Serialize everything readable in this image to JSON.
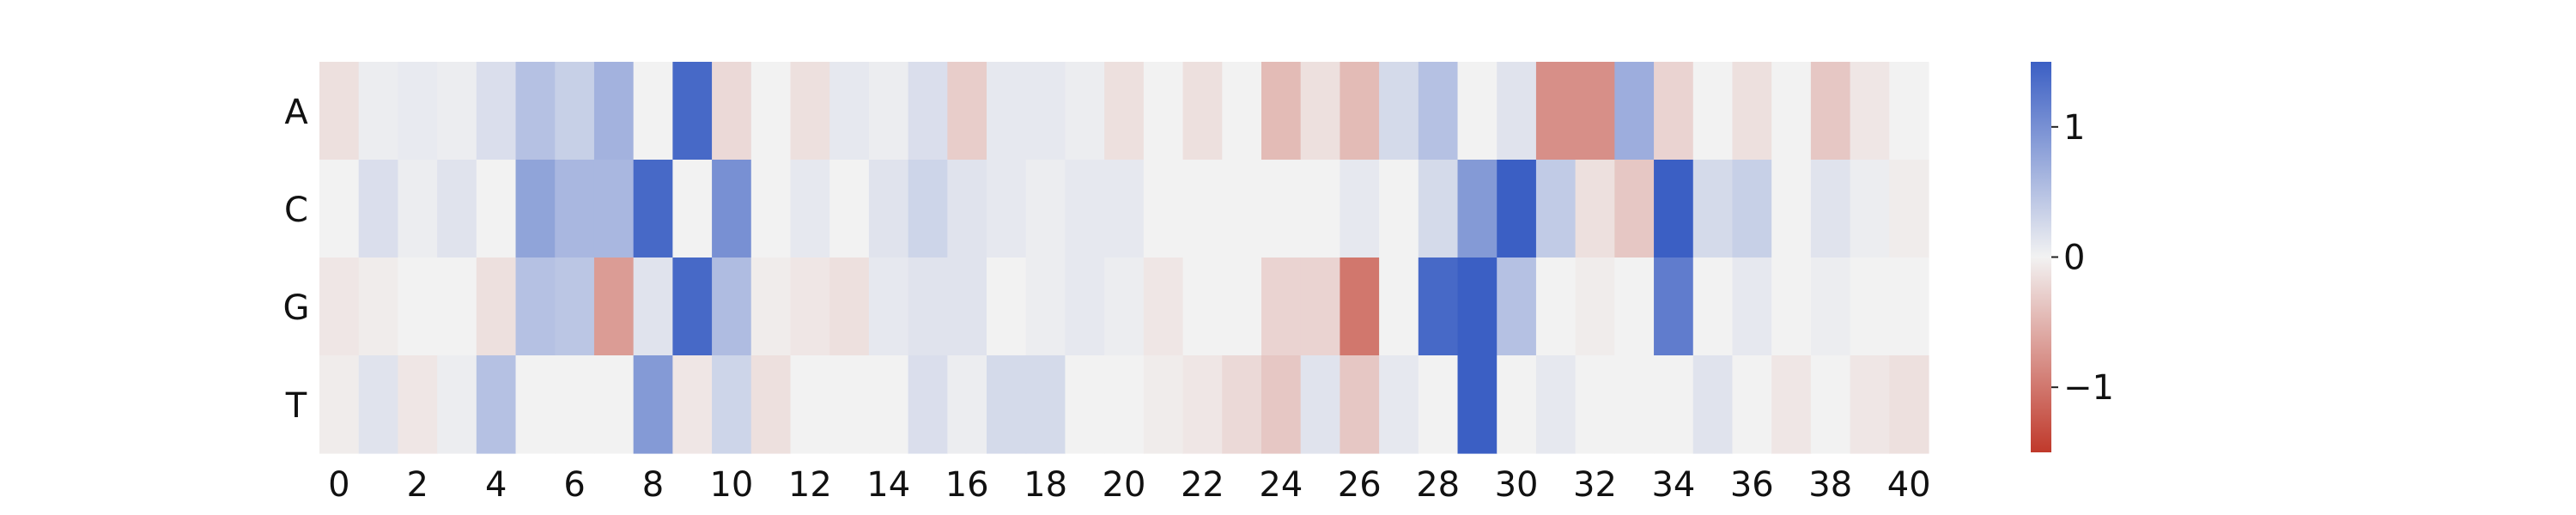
{
  "colors": {
    "negative": "#c0392b",
    "neutral": "#f2f2f2",
    "positive": "#3b5fc4"
  },
  "chart_data": {
    "type": "heatmap",
    "x_tick_labels": [
      "0",
      "2",
      "4",
      "6",
      "8",
      "10",
      "12",
      "14",
      "16",
      "18",
      "20",
      "22",
      "24",
      "26",
      "28",
      "30",
      "32",
      "34",
      "36",
      "38",
      "40"
    ],
    "rows": [
      "A",
      "C",
      "G",
      "T"
    ],
    "columns": [
      0,
      1,
      2,
      3,
      4,
      5,
      6,
      7,
      8,
      9,
      10,
      11,
      12,
      13,
      14,
      15,
      16,
      17,
      18,
      19,
      20,
      21,
      22,
      23,
      24,
      25,
      26,
      27,
      28,
      29,
      30,
      31,
      32,
      33,
      34,
      35,
      36,
      37,
      38,
      39,
      40
    ],
    "values": [
      [
        -0.15,
        0.05,
        0.08,
        0.05,
        0.2,
        0.5,
        0.35,
        0.65,
        0.0,
        1.4,
        -0.2,
        0.0,
        -0.15,
        0.1,
        0.05,
        0.2,
        -0.3,
        0.1,
        0.1,
        0.05,
        -0.15,
        0.0,
        -0.15,
        0.0,
        -0.45,
        -0.15,
        -0.45,
        0.25,
        0.5,
        0.0,
        0.15,
        -0.8,
        -0.8,
        0.7,
        -0.25,
        0.0,
        -0.15,
        0.0,
        -0.35,
        -0.1,
        0.0
      ],
      [
        0.0,
        0.2,
        0.05,
        0.15,
        0.0,
        0.8,
        0.6,
        0.6,
        1.4,
        0.0,
        1.0,
        0.0,
        0.1,
        0.0,
        0.15,
        0.3,
        0.15,
        0.1,
        0.05,
        0.1,
        0.1,
        0.0,
        0.0,
        0.0,
        0.0,
        0.0,
        0.1,
        0.0,
        0.25,
        0.9,
        1.5,
        0.4,
        -0.15,
        -0.35,
        1.5,
        0.25,
        0.35,
        0.0,
        0.15,
        0.05,
        -0.05
      ],
      [
        -0.1,
        -0.05,
        0.0,
        0.0,
        -0.15,
        0.5,
        0.45,
        -0.7,
        0.15,
        1.4,
        0.55,
        -0.05,
        -0.1,
        -0.15,
        0.1,
        0.15,
        0.15,
        0.0,
        0.05,
        0.1,
        0.05,
        -0.1,
        0.0,
        0.0,
        -0.25,
        -0.25,
        -1.0,
        0.0,
        1.4,
        1.5,
        0.5,
        0.0,
        -0.05,
        0.0,
        1.2,
        0.0,
        0.1,
        0.0,
        0.05,
        0.0,
        0.0
      ],
      [
        -0.05,
        0.15,
        -0.1,
        0.05,
        0.5,
        0.0,
        0.0,
        0.0,
        0.9,
        -0.1,
        0.3,
        -0.15,
        0.0,
        0.0,
        0.0,
        0.2,
        0.05,
        0.25,
        0.25,
        0.0,
        0.0,
        -0.05,
        -0.1,
        -0.2,
        -0.35,
        0.15,
        -0.35,
        0.1,
        0.0,
        1.5,
        0.0,
        0.1,
        0.0,
        0.0,
        0.0,
        0.15,
        0.0,
        -0.1,
        0.0,
        -0.1,
        -0.15
      ]
    ],
    "colorbar": {
      "vmin": -1.5,
      "vmax": 1.5,
      "tick_values": [
        1,
        0,
        -1
      ],
      "tick_labels": [
        "1",
        "0",
        "−1"
      ]
    },
    "colormap": "coolwarm_r",
    "grid": false
  }
}
